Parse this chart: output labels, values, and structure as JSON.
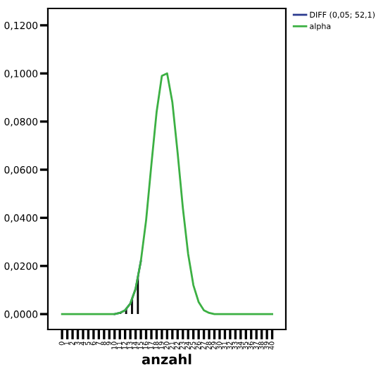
{
  "chart_data": {
    "type": "line",
    "xlabel": "anzahl",
    "categories": [
      "0",
      "1",
      "2",
      "3",
      "4",
      "5",
      "6",
      "7",
      "8",
      "9",
      "10",
      "11",
      "12",
      "13",
      "14",
      "15",
      "16",
      "17",
      "18",
      "19",
      "20",
      "21",
      "22",
      "23",
      "24",
      "25",
      "26",
      "27",
      "28",
      "29",
      "30",
      "31",
      "32",
      "33",
      "34",
      "35",
      "36",
      "37",
      "38",
      "39",
      "40"
    ],
    "series": [
      {
        "name": "DIFF (0,05; 52,1)",
        "type": "area",
        "color": "#2b3a8f",
        "values": [
          null,
          null,
          null,
          null,
          null,
          null,
          null,
          null,
          null,
          null,
          0,
          0.0005,
          0.0016,
          0.0044,
          0.0105,
          0.022,
          null,
          null,
          null,
          null,
          null,
          null,
          null,
          null,
          null,
          null,
          null,
          null,
          null,
          null,
          null,
          null,
          null,
          null,
          null,
          null,
          null,
          null,
          null,
          null,
          null
        ]
      },
      {
        "name": "alpha",
        "color": "#3cb043",
        "values": [
          0,
          0,
          0,
          0,
          0,
          0,
          0,
          0,
          0,
          0,
          0,
          0.0005,
          0.0016,
          0.0044,
          0.0105,
          0.022,
          0.039,
          0.062,
          0.084,
          0.099,
          0.1,
          0.088,
          0.067,
          0.044,
          0.025,
          0.012,
          0.005,
          0.0016,
          0.0005,
          0,
          0,
          0,
          0,
          0,
          0,
          0,
          0,
          0,
          0,
          0,
          0
        ]
      }
    ],
    "ylim": [
      -0.0064,
      0.127
    ],
    "yticks": [
      {
        "value": 0,
        "label": "0,0000"
      },
      {
        "value": 0.02,
        "label": "0,0200"
      },
      {
        "value": 0.04,
        "label": "0,0400"
      },
      {
        "value": 0.06,
        "label": "0,0600"
      },
      {
        "value": 0.08,
        "label": "0,0800"
      },
      {
        "value": 0.1,
        "label": "0,1000"
      },
      {
        "value": 0.12,
        "label": "0,1200"
      }
    ],
    "grid": false,
    "legend": "right"
  }
}
